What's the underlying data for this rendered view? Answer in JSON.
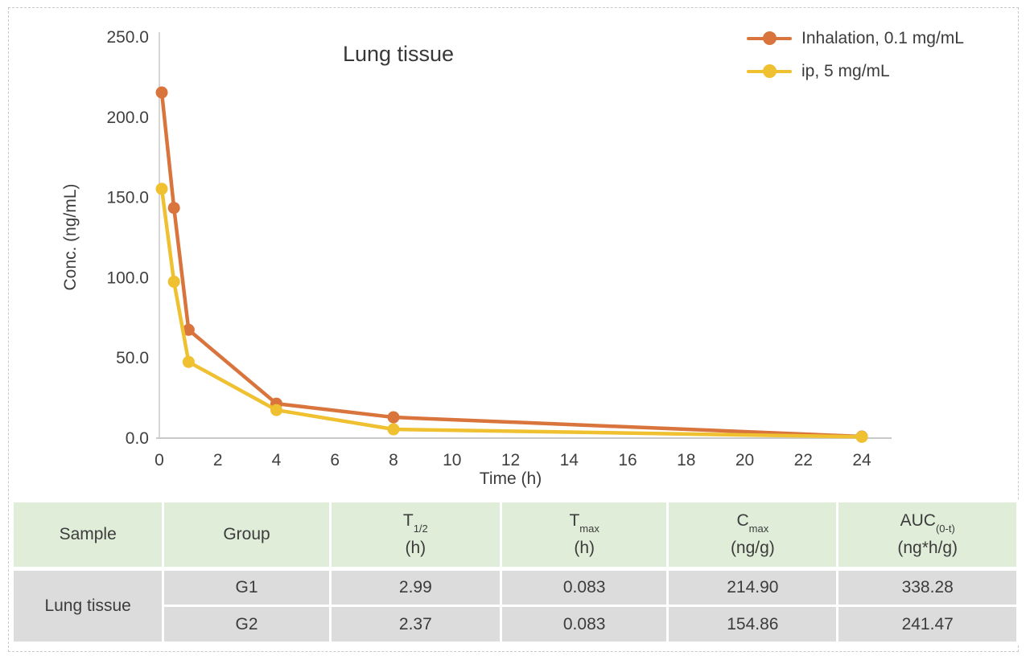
{
  "chart_data": {
    "type": "line",
    "title": "Lung tissue",
    "xlabel": "Time (h)",
    "ylabel": "Conc. (ng/mL)",
    "x": [
      0.083,
      0.5,
      1,
      4,
      8,
      24
    ],
    "series": [
      {
        "name": "Inhalation, 0.1 mg/mL",
        "color": "#D9743C",
        "values": [
          214.9,
          143,
          67,
          21,
          12.5,
          0.5
        ]
      },
      {
        "name": "ip, 5 mg/mL",
        "color": "#EFC02F",
        "values": [
          154.86,
          97,
          47,
          17,
          5,
          0.3
        ]
      }
    ],
    "xlim": [
      0,
      24
    ],
    "ylim": [
      0,
      250
    ],
    "x_ticks": [
      0,
      2,
      4,
      6,
      8,
      10,
      12,
      14,
      16,
      18,
      20,
      22,
      24
    ],
    "y_ticks": [
      "0.0",
      "50.0",
      "100.0",
      "150.0",
      "200.0",
      "250.0"
    ],
    "grid": false,
    "legend_position": "top-right"
  },
  "table": {
    "header_bg": "#DFEDD9",
    "row_bg": "#DCDCDC",
    "headers": [
      {
        "label": "Sample"
      },
      {
        "label": "Group"
      },
      {
        "main": "T",
        "sub": "1/2",
        "unit": "(h)"
      },
      {
        "main": "T",
        "sub": "max",
        "unit": "(h)"
      },
      {
        "main": "C",
        "sub": "max",
        "unit": "(ng/g)"
      },
      {
        "main": "AUC",
        "sub": "(0-t)",
        "unit": "(ng*h/g)"
      }
    ],
    "sample": "Lung tissue",
    "rows": [
      {
        "group": "G1",
        "t_half": "2.99",
        "t_max": "0.083",
        "c_max": "214.90",
        "auc": "338.28"
      },
      {
        "group": "G2",
        "t_half": "2.37",
        "t_max": "0.083",
        "c_max": "154.86",
        "auc": "241.47"
      }
    ]
  }
}
